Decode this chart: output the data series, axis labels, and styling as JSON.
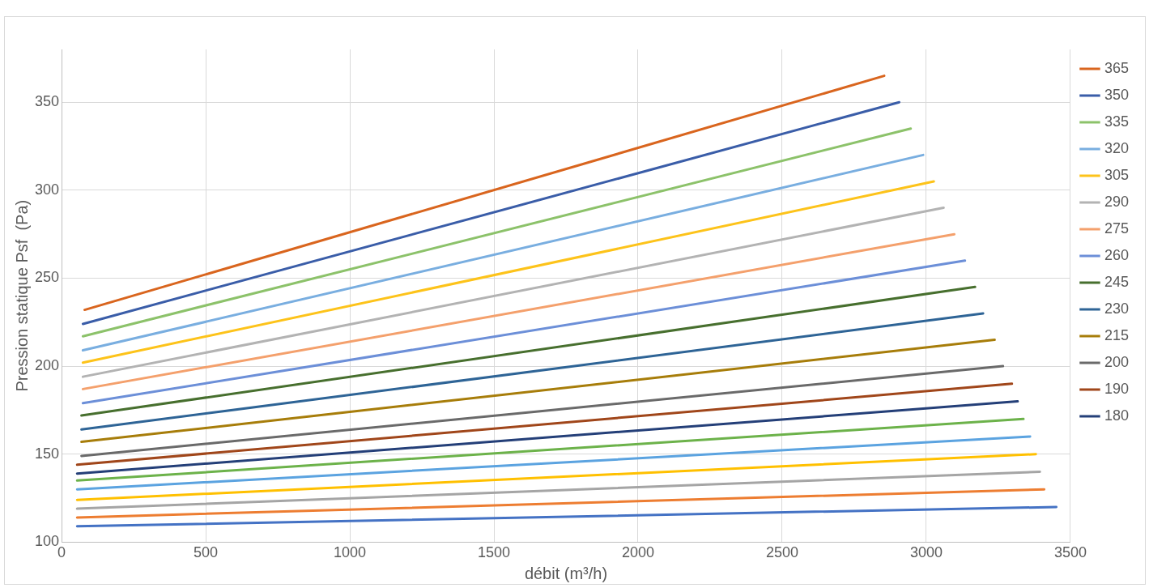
{
  "chart_data": {
    "type": "line",
    "xlabel": "débit (m³/h)",
    "ylabel": "Pression statique Psf  (Pa)",
    "xlim": [
      0,
      3500
    ],
    "xticks": [
      0,
      500,
      1000,
      1500,
      2000,
      2500,
      3000,
      3500
    ],
    "ylim": [
      100,
      380
    ],
    "yticks": [
      100,
      150,
      200,
      250,
      300,
      350
    ],
    "grid": true,
    "legend": "right",
    "marker": "none",
    "line_style": "solid",
    "series": [
      {
        "name": "365",
        "color": "#d9651e",
        "x": [
          80,
          2854
        ],
        "values": [
          232,
          365
        ]
      },
      {
        "name": "350",
        "color": "#3a5da8",
        "x": [
          74,
          2906
        ],
        "values": [
          224,
          350
        ]
      },
      {
        "name": "335",
        "color": "#8cc26a",
        "x": [
          74,
          2946
        ],
        "values": [
          217,
          335
        ]
      },
      {
        "name": "320",
        "color": "#79aee0",
        "x": [
          74,
          2989
        ],
        "values": [
          209,
          320
        ]
      },
      {
        "name": "305",
        "color": "#fdc31a",
        "x": [
          74,
          3026
        ],
        "values": [
          202,
          305
        ]
      },
      {
        "name": "290",
        "color": "#b3b3b3",
        "x": [
          74,
          3060
        ],
        "values": [
          194,
          290
        ]
      },
      {
        "name": "275",
        "color": "#f4a06c",
        "x": [
          74,
          3097
        ],
        "values": [
          187,
          275
        ]
      },
      {
        "name": "260",
        "color": "#6c8fd8",
        "x": [
          74,
          3134
        ],
        "values": [
          179,
          260
        ]
      },
      {
        "name": "245",
        "color": "#476f2e",
        "x": [
          69,
          3169
        ],
        "values": [
          172,
          245
        ]
      },
      {
        "name": "230",
        "color": "#2e6496",
        "x": [
          69,
          3197
        ],
        "values": [
          164,
          230
        ]
      },
      {
        "name": "215",
        "color": "#a77d0a",
        "x": [
          69,
          3237
        ],
        "values": [
          157,
          215
        ]
      },
      {
        "name": "200",
        "color": "#6a6a6a",
        "x": [
          69,
          3266
        ],
        "values": [
          149,
          200
        ]
      },
      {
        "name": "190",
        "color": "#a0461a",
        "x": [
          54,
          3297
        ],
        "values": [
          144,
          190
        ]
      },
      {
        "name": "180",
        "color": "#243f78",
        "x": [
          54,
          3317
        ],
        "values": [
          139,
          180
        ]
      },
      {
        "color": "#6cb24a",
        "x": [
          54,
          3337
        ],
        "values": [
          135,
          170
        ]
      },
      {
        "color": "#5ba3e0",
        "x": [
          54,
          3360
        ],
        "values": [
          130,
          160
        ]
      },
      {
        "color": "#ffc000",
        "x": [
          54,
          3380
        ],
        "values": [
          124,
          150
        ]
      },
      {
        "color": "#a5a5a5",
        "x": [
          54,
          3394
        ],
        "values": [
          119,
          140
        ]
      },
      {
        "color": "#ed7d31",
        "x": [
          54,
          3409
        ],
        "values": [
          114,
          130
        ]
      },
      {
        "color": "#4472c4",
        "x": [
          54,
          3451
        ],
        "values": [
          109,
          120
        ]
      }
    ]
  }
}
